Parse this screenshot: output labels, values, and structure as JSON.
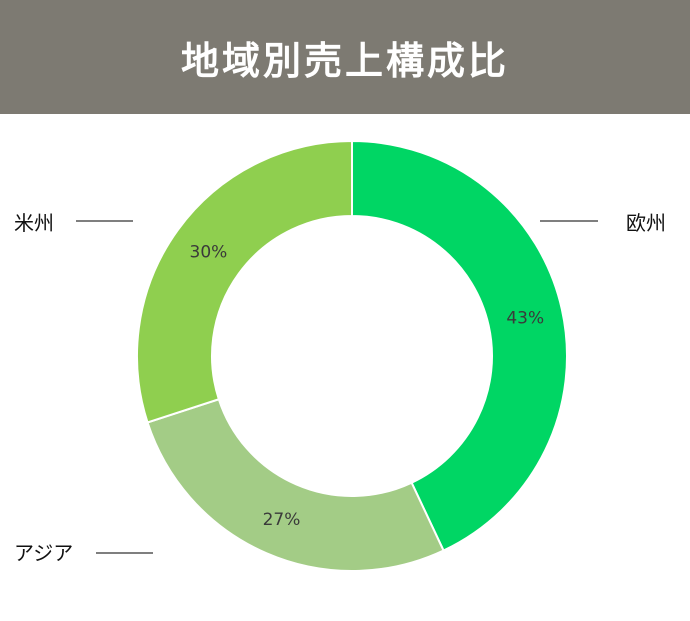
{
  "chart_data": {
    "type": "pie",
    "title": "地域別売上構成比",
    "donut": true,
    "categories": [
      "欧州",
      "アジア",
      "米州"
    ],
    "values": [
      43,
      27,
      30
    ],
    "value_labels": [
      "43%",
      "27%",
      "30%"
    ],
    "colors": [
      "#00d664",
      "#a3cc86",
      "#8fcf4f"
    ],
    "legend": "none"
  },
  "header": {
    "background": "#7d7a72"
  }
}
